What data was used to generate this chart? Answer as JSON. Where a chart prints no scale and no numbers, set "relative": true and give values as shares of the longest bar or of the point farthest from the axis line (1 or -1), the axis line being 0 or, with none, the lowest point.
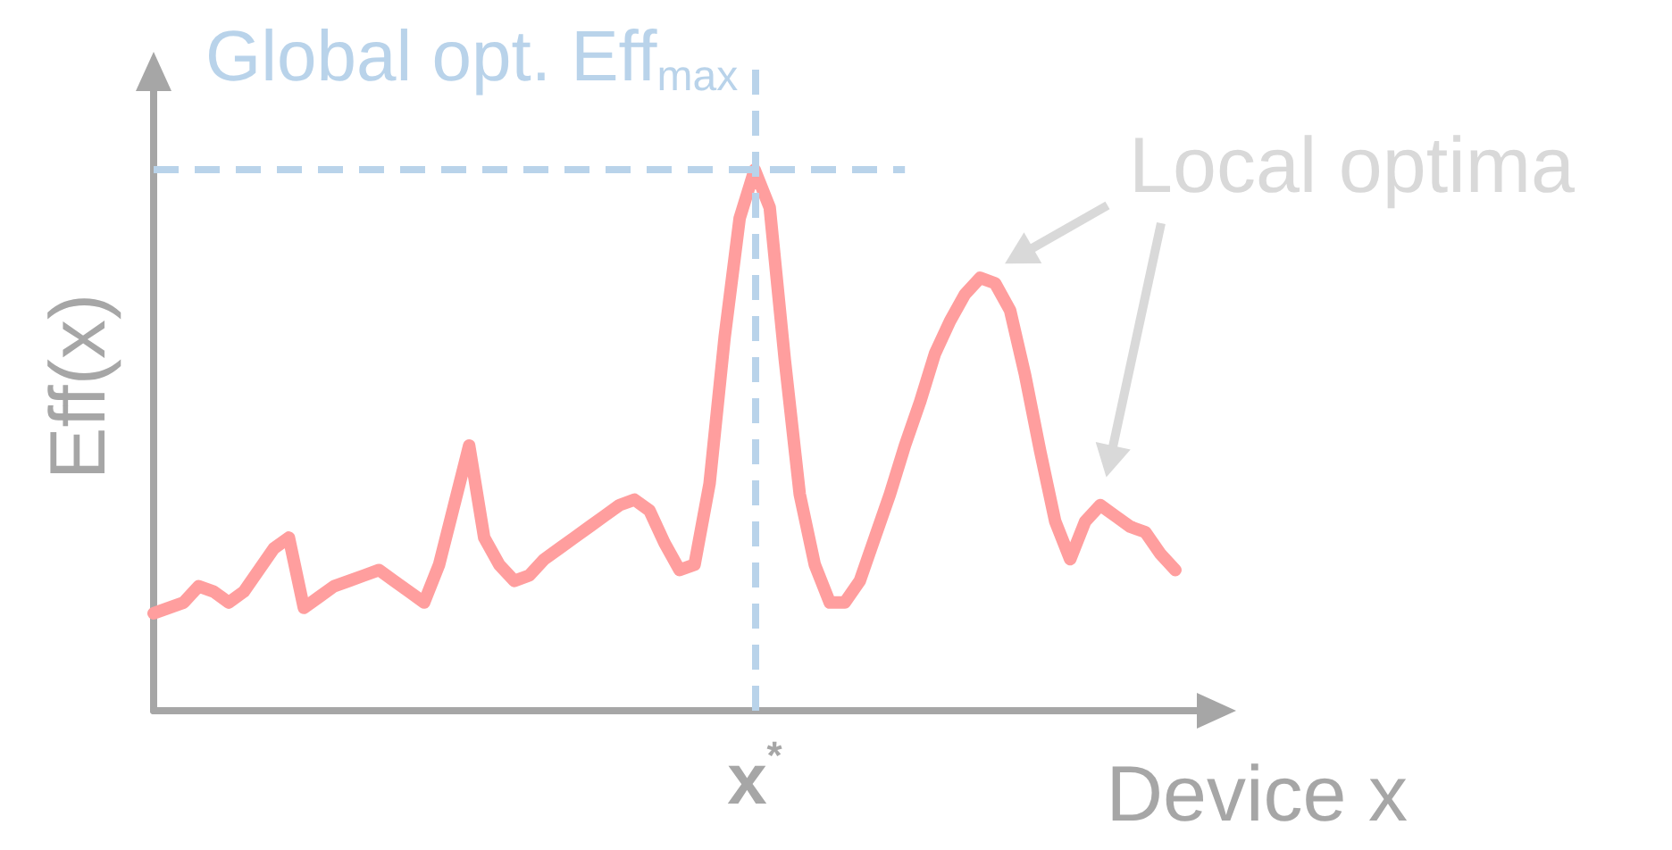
{
  "chart_data": {
    "type": "line",
    "relative": true,
    "title": "Global opt. Eff$_{max}$",
    "xlabel": "Device x",
    "ylabel": "Eff(x)",
    "categories": [
      null,
      null,
      null,
      null,
      null,
      null,
      null,
      null,
      null,
      null,
      null,
      null,
      null,
      null,
      null,
      null,
      null,
      null,
      null,
      null,
      null,
      null,
      null,
      null,
      null,
      null,
      null,
      null,
      null,
      null,
      null,
      null,
      null,
      null,
      null,
      null,
      null,
      null,
      null,
      null,
      null,
      null,
      null,
      null,
      null,
      null,
      null,
      null,
      null,
      null,
      null,
      null,
      null,
      null,
      null,
      null,
      null,
      null,
      null,
      null,
      null,
      null,
      null,
      null,
      null,
      null,
      null,
      null,
      null
    ],
    "tick_labels": false,
    "grid": false,
    "line_style": "solid",
    "series": [
      {
        "color": "#ff9e9e",
        "values": [
          0.18,
          0.19,
          0.2,
          0.23,
          0.22,
          0.2,
          0.22,
          0.26,
          0.3,
          0.32,
          0.19,
          0.21,
          0.23,
          0.24,
          0.25,
          0.26,
          0.24,
          0.22,
          0.2,
          0.27,
          0.38,
          0.49,
          0.32,
          0.27,
          0.24,
          0.25,
          0.28,
          0.3,
          0.32,
          0.34,
          0.36,
          0.38,
          0.39,
          0.37,
          0.31,
          0.26,
          0.27,
          0.42,
          0.69,
          0.91,
          1.0,
          0.93,
          0.65,
          0.4,
          0.27,
          0.2,
          0.2,
          0.24,
          0.32,
          0.4,
          0.49,
          0.57,
          0.66,
          0.72,
          0.77,
          0.8,
          0.79,
          0.74,
          0.62,
          0.48,
          0.35,
          0.28,
          0.35,
          0.38,
          0.36,
          0.34,
          0.33,
          0.29,
          0.26
        ]
      }
    ],
    "annotations": [
      "Local optima",
      "x$^{*}$"
    ]
  }
}
